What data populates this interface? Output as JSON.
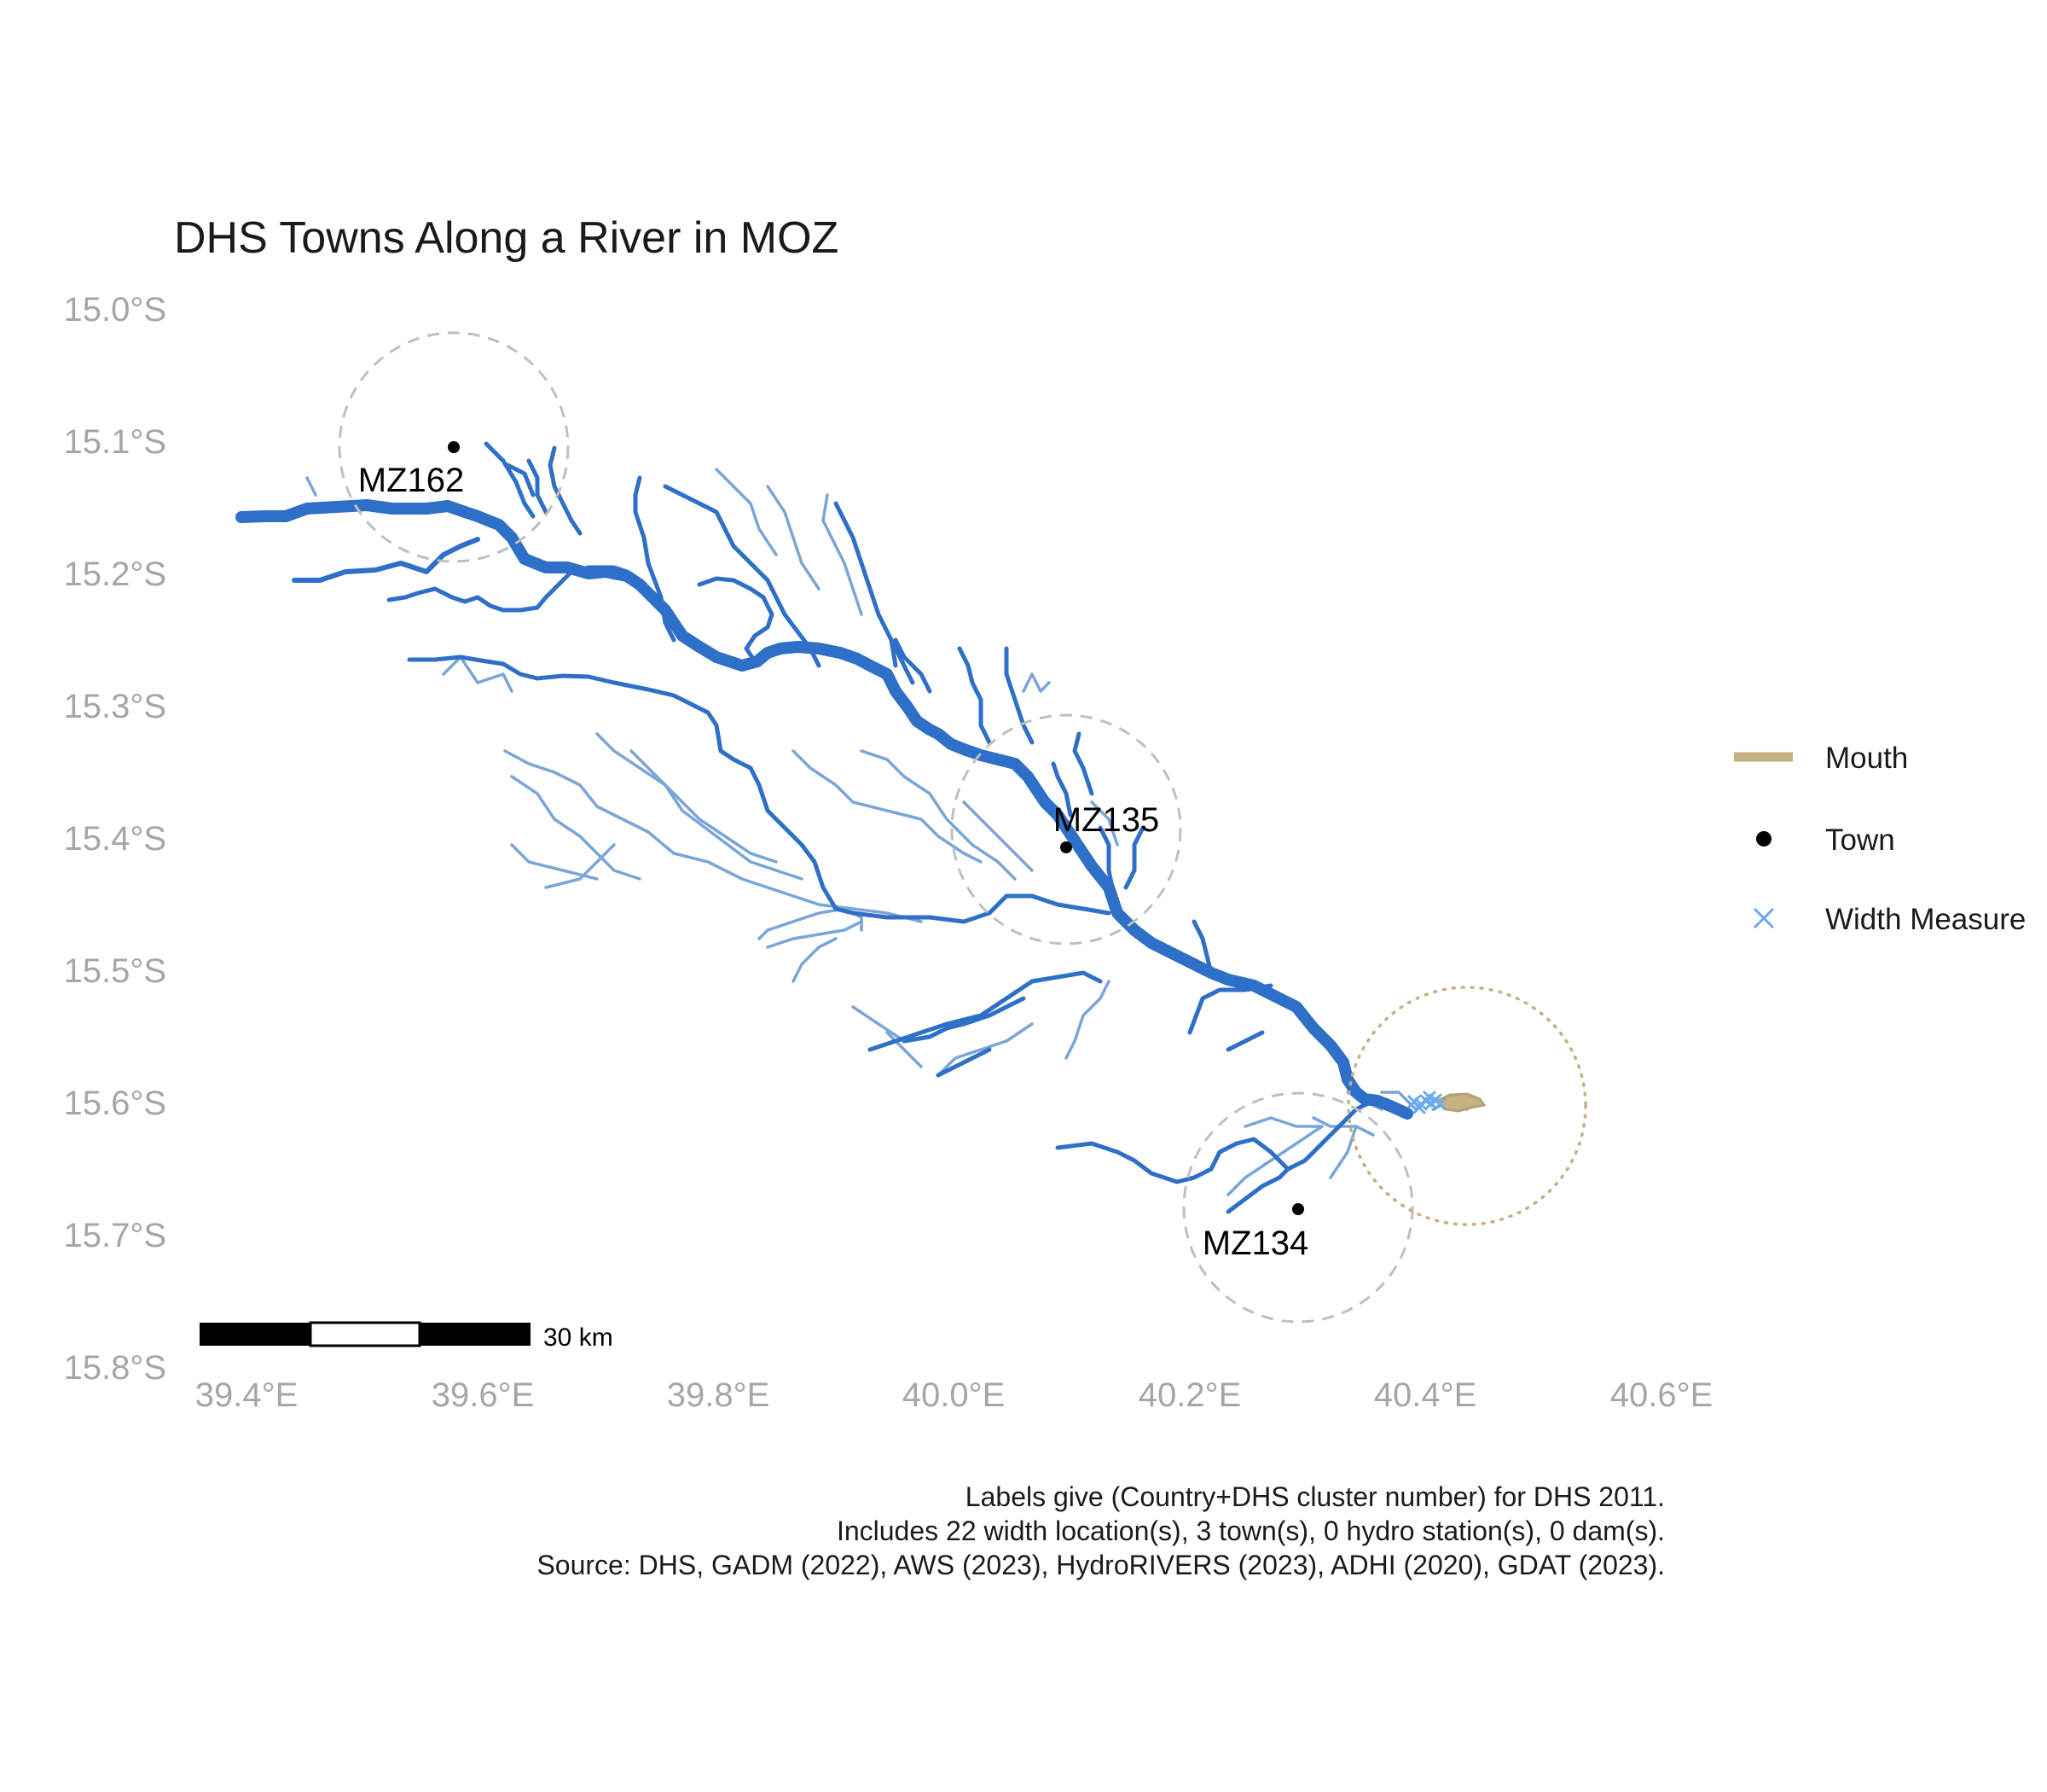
{
  "title": "DHS Towns Along a River in MOZ",
  "y_ticks": [
    "15.0°S",
    "15.1°S",
    "15.2°S",
    "15.3°S",
    "15.4°S",
    "15.5°S",
    "15.6°S",
    "15.7°S",
    "15.8°S"
  ],
  "x_ticks": [
    "39.4°E",
    "39.6°E",
    "39.8°E",
    "40.0°E",
    "40.2°E",
    "40.4°E",
    "40.6°E"
  ],
  "towns": [
    {
      "label": "MZ162",
      "lon": 39.575,
      "lat": -15.103
    },
    {
      "label": "MZ135",
      "lon": 40.095,
      "lat": -15.405
    },
    {
      "label": "MZ134",
      "lon": 40.292,
      "lat": -15.678
    }
  ],
  "legend": {
    "mouth": "Mouth",
    "town": "Town",
    "width": "Width Measure"
  },
  "scale_bar": {
    "label": "30 km"
  },
  "caption": [
    "Labels give (Country+DHS cluster number) for DHS 2011.",
    "Includes 22 width location(s), 3 town(s), 0 hydro station(s), 0 dam(s).",
    "Source: DHS, GADM (2022), AWS (2023), HydroRIVERS (2023), ADHI (2020), GDAT (2023)."
  ],
  "colors": {
    "river_main": "#2e6fc7",
    "river_light": "#7aa5d8",
    "mouth": "#c4b282",
    "width_measure": "#6aa8f0",
    "buffer_circle": "#bfbfbf",
    "town": "#000000"
  }
}
